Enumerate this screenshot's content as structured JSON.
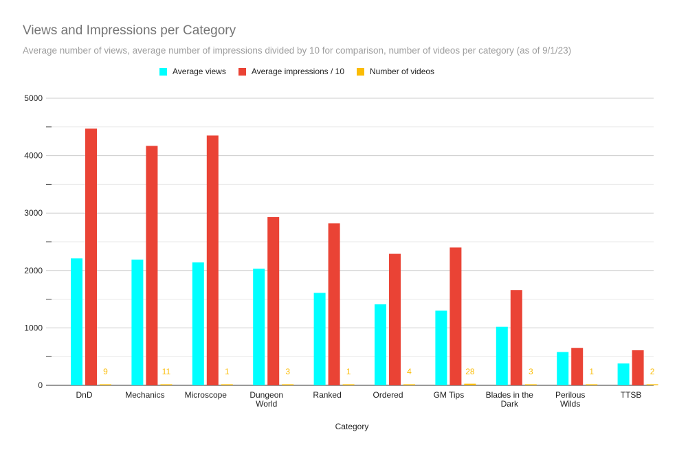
{
  "chart_data": {
    "type": "bar",
    "title": "Views and Impressions per Category",
    "subtitle": "Average number of views, average number of impressions divided by 10 for comparison, number of videos per category (as of 9/1/23)",
    "xlabel": "Category",
    "ylabel": "",
    "ylim": [
      0,
      5000
    ],
    "yticks": [
      "0",
      "1000",
      "2000",
      "3000",
      "4000",
      "5000"
    ],
    "grid": true,
    "legend_position": "top",
    "categories": [
      [
        "DnD"
      ],
      [
        "Mechanics"
      ],
      [
        "Microscope"
      ],
      [
        "Dungeon",
        "World"
      ],
      [
        "Ranked"
      ],
      [
        "Ordered"
      ],
      [
        "GM Tips"
      ],
      [
        "Blades in the",
        "Dark"
      ],
      [
        "Perilous",
        "Wilds"
      ],
      [
        "TTSB"
      ]
    ],
    "series": [
      {
        "name": "Average views",
        "color": "#00ffff",
        "values": [
          2210,
          2190,
          2140,
          2030,
          1610,
          1410,
          1300,
          1020,
          580,
          380
        ]
      },
      {
        "name": "Average impressions / 10",
        "color": "#ea4335",
        "values": [
          4470,
          4170,
          4350,
          2930,
          2820,
          2290,
          2400,
          1660,
          650,
          610
        ]
      },
      {
        "name": "Number of videos",
        "color": "#fbbc04",
        "values": [
          9,
          11,
          1,
          3,
          1,
          4,
          28,
          3,
          1,
          2
        ],
        "data_labels": [
          "9",
          "11",
          "1",
          "3",
          "1",
          "4",
          "28",
          "3",
          "1",
          "2"
        ]
      }
    ]
  }
}
